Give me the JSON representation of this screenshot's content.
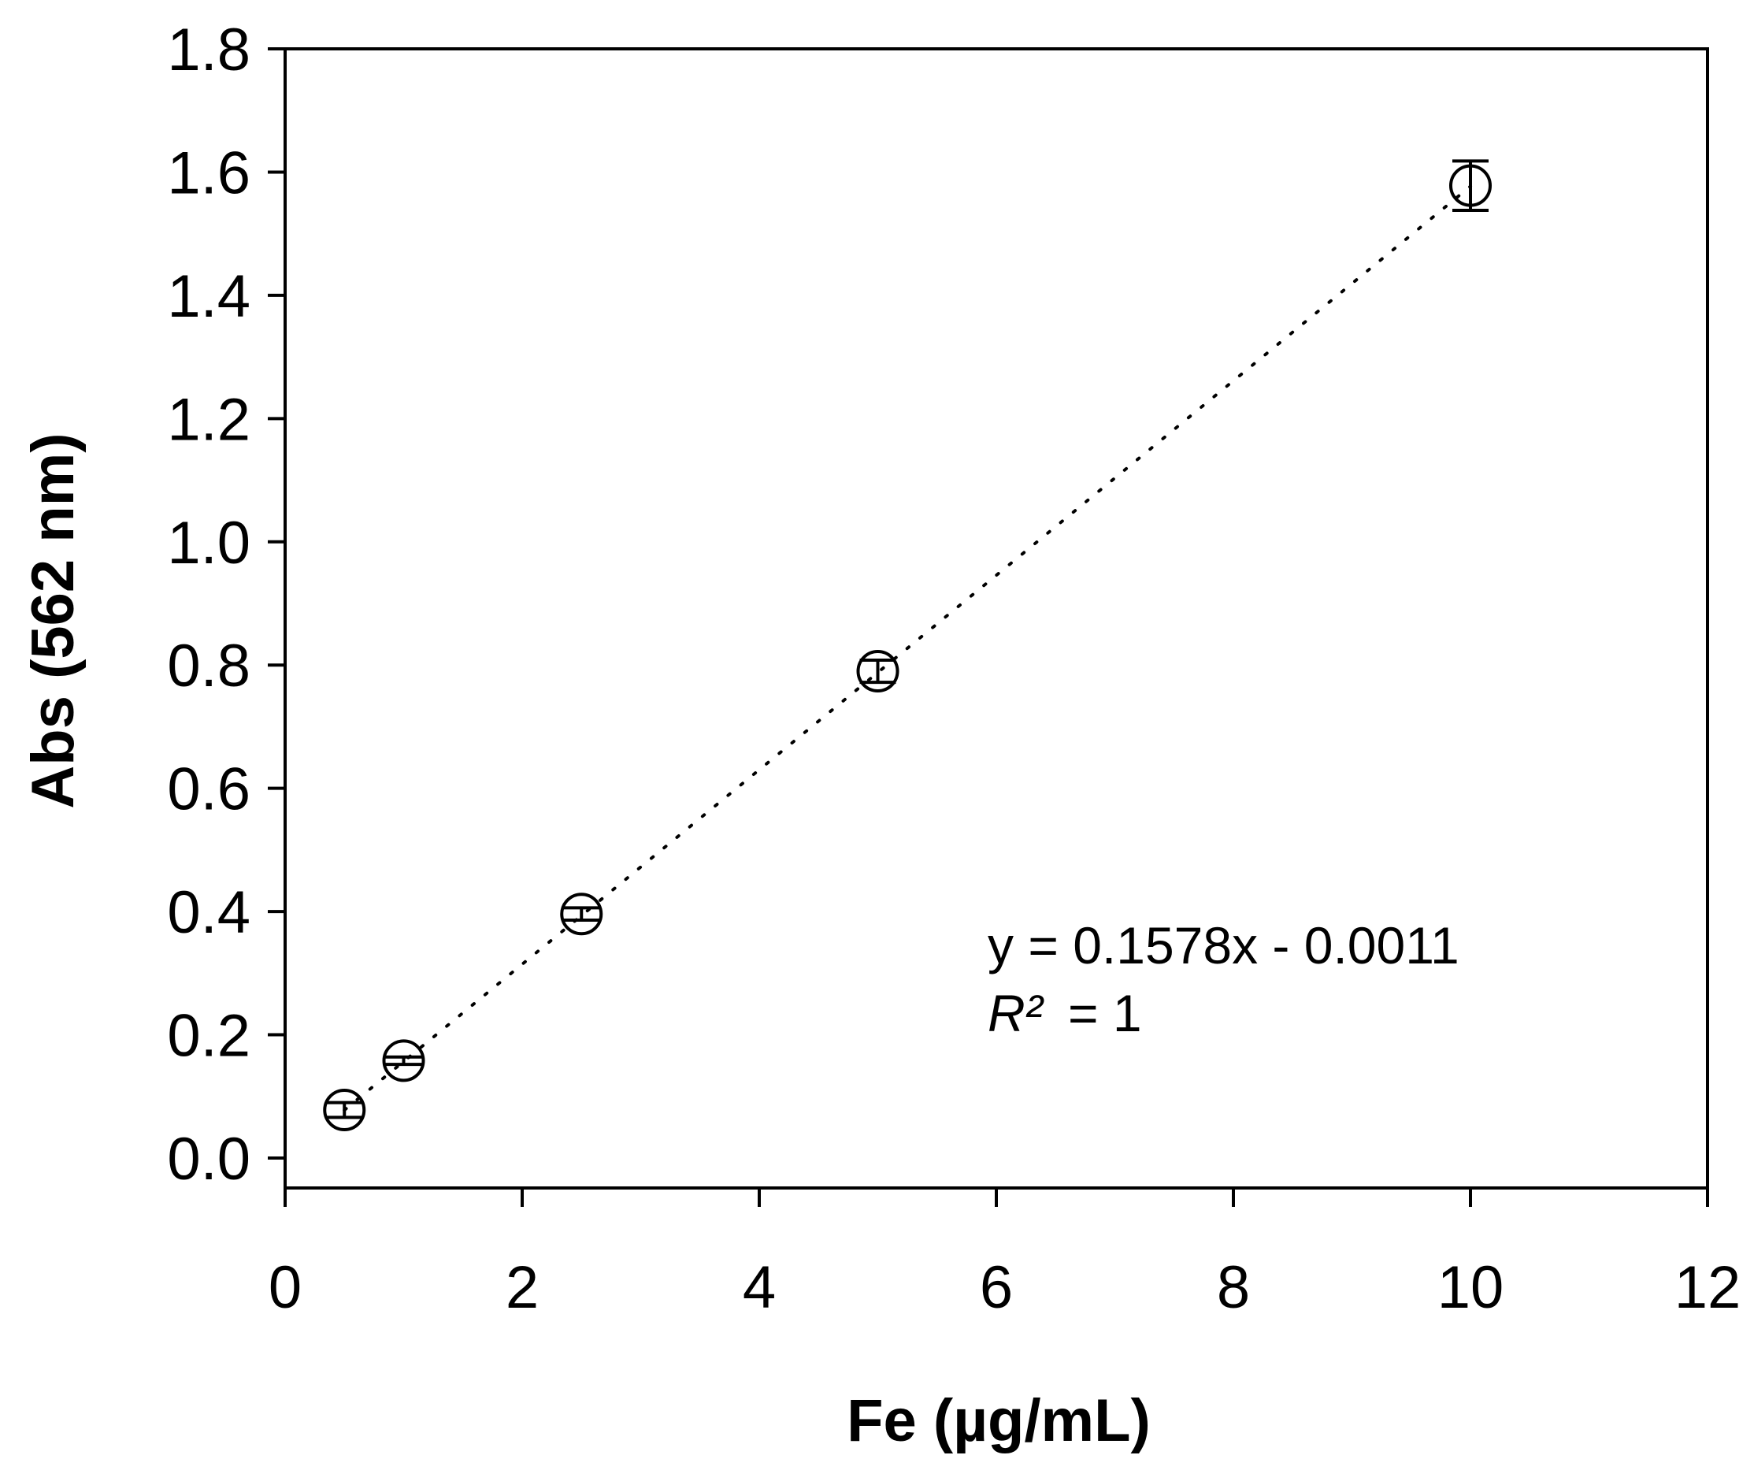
{
  "chart_data": {
    "type": "scatter",
    "title": "",
    "xlabel": "Fe (µg/mL)",
    "ylabel": "Abs (562 nm)",
    "xlim": [
      0,
      12
    ],
    "ylim": [
      0,
      1.8
    ],
    "x_ticks": [
      0,
      2,
      4,
      6,
      8,
      10,
      12
    ],
    "y_ticks": [
      "0.0",
      "0.2",
      "0.4",
      "0.6",
      "0.8",
      "1.0",
      "1.2",
      "1.4",
      "1.6",
      "1.8"
    ],
    "grid": false,
    "legend": "none",
    "series": [
      {
        "marker": "open-circle",
        "points": [
          {
            "x": 0.5,
            "y": 0.078,
            "err": 0.012
          },
          {
            "x": 1.0,
            "y": 0.158,
            "err": 0.006
          },
          {
            "x": 2.5,
            "y": 0.396,
            "err": 0.01
          },
          {
            "x": 5.0,
            "y": 0.79,
            "err": 0.018
          },
          {
            "x": 10.0,
            "y": 1.578,
            "err": 0.04
          }
        ]
      }
    ],
    "trendline": {
      "style": "dotted",
      "slope": 0.1578,
      "intercept": -0.0011,
      "x_range": [
        0.5,
        10.0
      ]
    },
    "annotation": {
      "equation": "y = 0.1578x - 0.0011",
      "r2_symbol": "R²",
      "r2_value": "= 1"
    }
  }
}
